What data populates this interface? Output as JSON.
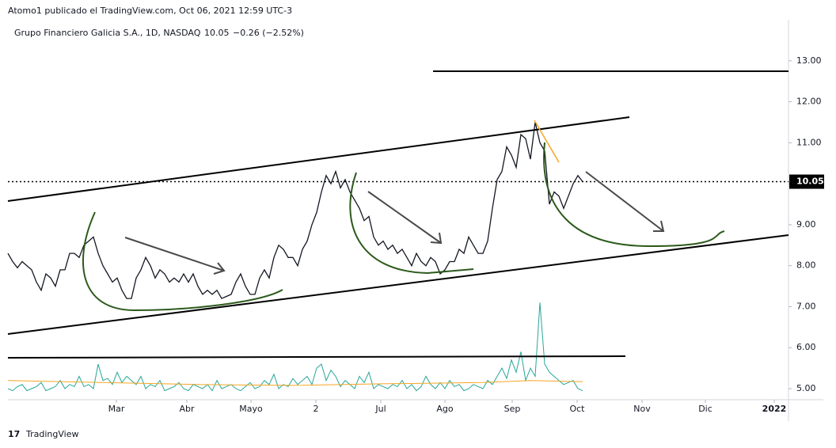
{
  "header": {
    "published": "Atomo1 publicado el TradingView.com, Oct 06, 2021 12:59 UTC-3",
    "symbol": "Grupo Financiero Galicia S.A., 1D, NASDAQ",
    "change": "−0.26 (−2.52%)"
  },
  "footer": {
    "brand": "TradingView"
  },
  "chart_data": {
    "type": "line",
    "last_price": 10.05,
    "ylim": [
      4.73,
      14.0
    ],
    "yticks": [
      {
        "value": 5,
        "label": "5.00"
      },
      {
        "value": 6,
        "label": "6.00"
      },
      {
        "value": 7,
        "label": "7.00"
      },
      {
        "value": 8,
        "label": "8.00"
      },
      {
        "value": 9,
        "label": "9.00"
      },
      {
        "value": 10,
        "label": "10.00"
      },
      {
        "value": 11,
        "label": "11.00"
      },
      {
        "value": 12,
        "label": "12.00"
      },
      {
        "value": 13,
        "label": "13.00"
      }
    ],
    "xlim": [
      0,
      164.33
    ],
    "xticks": [
      {
        "value": 22.83,
        "label": "Mar"
      },
      {
        "value": 37.67,
        "label": "Abr"
      },
      {
        "value": 51.17,
        "label": "Mayo"
      },
      {
        "value": 64.83,
        "label": "2"
      },
      {
        "value": 78.5,
        "label": "Jul"
      },
      {
        "value": 92,
        "label": "Ago"
      },
      {
        "value": 106.17,
        "label": "Sep"
      },
      {
        "value": 119.83,
        "label": "Oct"
      },
      {
        "value": 133.5,
        "label": "Nov"
      },
      {
        "value": 146.83,
        "label": "Dic"
      },
      {
        "value": 161.33,
        "label": "2022"
      }
    ],
    "series": [
      {
        "color": "#131722",
        "values": [
          8.3,
          8.1,
          7.95,
          8.1,
          8.0,
          7.9,
          7.6,
          7.4,
          7.8,
          7.7,
          7.5,
          7.9,
          7.9,
          8.3,
          8.3,
          8.2,
          8.5,
          8.6,
          8.7,
          8.3,
          8.0,
          7.8,
          7.6,
          7.7,
          7.4,
          7.2,
          7.2,
          7.7,
          7.9,
          8.2,
          8.0,
          7.7,
          7.9,
          7.8,
          7.6,
          7.7,
          7.6,
          7.8,
          7.6,
          7.8,
          7.5,
          7.3,
          7.4,
          7.3,
          7.4,
          7.2,
          7.25,
          7.3,
          7.6,
          7.8,
          7.5,
          7.3,
          7.3,
          7.7,
          7.9,
          7.7,
          8.2,
          8.5,
          8.4,
          8.2,
          8.2,
          8.0,
          8.4,
          8.6,
          9.0,
          9.3,
          9.8,
          10.2,
          10.0,
          10.3,
          9.9,
          10.1,
          9.8,
          9.6,
          9.4,
          9.1,
          9.2,
          8.7,
          8.5,
          8.6,
          8.4,
          8.5,
          8.3,
          8.4,
          8.2,
          8.0,
          8.3,
          8.1,
          8.0,
          8.2,
          8.1,
          7.8,
          7.9,
          8.1,
          8.1,
          8.4,
          8.3,
          8.7,
          8.5,
          8.3,
          8.3,
          8.6,
          9.4,
          10.1,
          10.3,
          10.9,
          10.7,
          10.4,
          11.2,
          11.1,
          10.6,
          11.5,
          11.0,
          10.8,
          9.5,
          9.8,
          9.7,
          9.4,
          9.7,
          10.0,
          10.2,
          10.05
        ]
      },
      {
        "color": "#26a69a",
        "values": [
          5.0,
          4.95,
          5.05,
          5.1,
          4.95,
          5.0,
          5.05,
          5.15,
          4.95,
          5.0,
          5.05,
          5.2,
          5.0,
          5.1,
          5.05,
          5.3,
          5.05,
          5.1,
          5.0,
          5.6,
          5.2,
          5.25,
          5.1,
          5.4,
          5.15,
          5.3,
          5.2,
          5.1,
          5.3,
          5.0,
          5.1,
          5.05,
          5.2,
          4.95,
          5.0,
          5.05,
          5.15,
          5.0,
          4.95,
          5.1,
          5.05,
          5.0,
          5.1,
          4.95,
          5.2,
          5.0,
          5.05,
          5.1,
          5.0,
          4.95,
          5.05,
          5.15,
          5.0,
          5.05,
          5.2,
          5.1,
          5.35,
          5.0,
          5.1,
          5.05,
          5.25,
          5.1,
          5.2,
          5.3,
          5.1,
          5.5,
          5.6,
          5.2,
          5.45,
          5.3,
          5.05,
          5.2,
          5.1,
          5.0,
          5.3,
          5.15,
          5.4,
          5.0,
          5.1,
          5.05,
          5.0,
          5.1,
          5.05,
          5.2,
          5.0,
          5.1,
          4.95,
          5.05,
          5.3,
          5.1,
          5.0,
          5.15,
          5.0,
          5.2,
          5.05,
          5.1,
          4.95,
          5.0,
          5.1,
          5.05,
          5.0,
          5.2,
          5.1,
          5.3,
          5.5,
          5.25,
          5.7,
          5.4,
          5.9,
          5.2,
          5.5,
          5.3,
          7.1,
          5.6,
          5.4,
          5.3,
          5.2,
          5.1,
          5.15,
          5.2,
          5.0,
          4.95
        ]
      },
      {
        "color": "#f5a623",
        "x": [
          0,
          20,
          40,
          60,
          80,
          100,
          110,
          121
        ],
        "values": [
          5.2,
          5.15,
          5.1,
          5.08,
          5.12,
          5.15,
          5.2,
          5.17
        ]
      }
    ]
  }
}
